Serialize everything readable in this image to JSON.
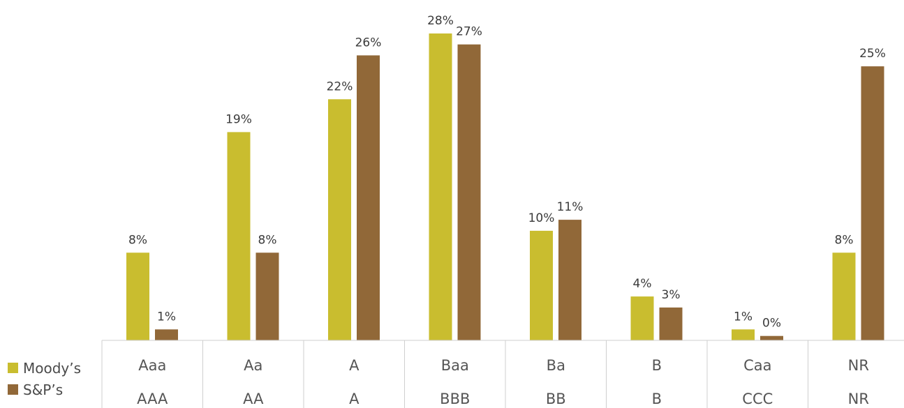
{
  "chart_data": {
    "type": "bar",
    "categories_moodys": [
      "Aaa",
      "Aa",
      "A",
      "Baa",
      "Ba",
      "B",
      "Caa",
      "NR"
    ],
    "categories_sp": [
      "AAA",
      "AA",
      "A",
      "BBB",
      "BB",
      "B",
      "CCC",
      "NR"
    ],
    "series": [
      {
        "name": "Moody’s",
        "color": "#c9bd2f",
        "values": [
          8,
          19,
          22,
          28,
          10,
          4,
          1,
          8
        ],
        "labels": [
          "8%",
          "19%",
          "22%",
          "28%",
          "10%",
          "4%",
          "1%",
          "8%"
        ]
      },
      {
        "name": "S&P’s",
        "color": "#916838",
        "values": [
          1,
          8,
          26,
          27,
          11,
          3,
          0.4,
          25
        ],
        "labels": [
          "1%",
          "8%",
          "26%",
          "27%",
          "11%",
          "3%",
          "0%",
          "25%"
        ]
      }
    ],
    "ylim": [
      0,
      28
    ],
    "grid": false,
    "legend_position": "bottom-left"
  }
}
